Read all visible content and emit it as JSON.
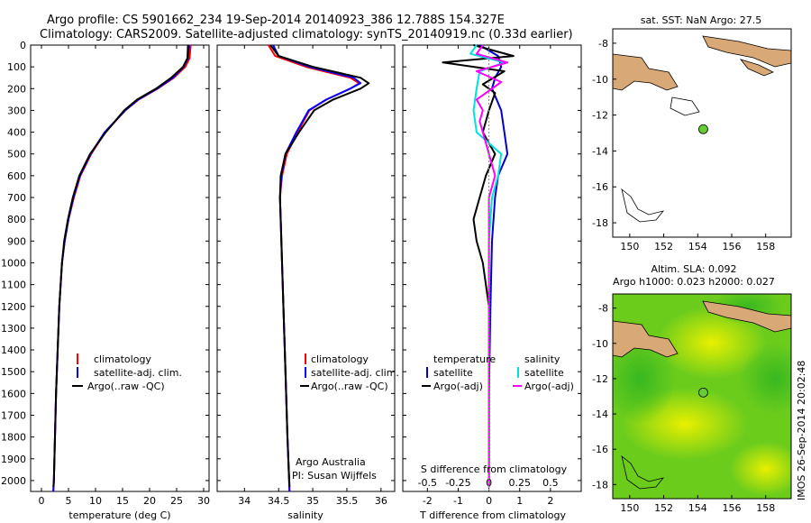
{
  "header": {
    "line1": "Argo profile: CS 5901662_234 19-Sep-2014 20140923_386 12.788S 154.327E",
    "line2": "Climatology: CARS2009. Satellite-adjusted climatology: synTS_20140919.nc (0.33d earlier)"
  },
  "colors": {
    "climatology": "#ff0000",
    "satellite": "#0000ff",
    "argo": "#000000",
    "temp_sat": "#0000c8",
    "sal_sat": "#00e0e0",
    "sal_argo": "#ff00ff",
    "land": "#d9a877",
    "float_marker": "#66cc33"
  },
  "depth_axis": {
    "ticks": [
      0,
      100,
      200,
      300,
      400,
      500,
      600,
      700,
      800,
      900,
      1000,
      1100,
      1200,
      1300,
      1400,
      1500,
      1600,
      1700,
      1800,
      1900,
      2000
    ],
    "range": [
      0,
      2050
    ]
  },
  "chart_data": [
    {
      "type": "line",
      "panel": "temperature",
      "xlabel": "temperature (deg C)",
      "xlim": [
        -2,
        31
      ],
      "xticks": [
        0,
        5,
        10,
        15,
        20,
        25,
        30
      ],
      "ylim": [
        2050,
        0
      ],
      "legend": {
        "placement": "lower-middle",
        "items": [
          "climatology",
          "satellite-adj. clim.",
          "Argo(..raw -QC)"
        ]
      },
      "series": [
        {
          "name": "climatology",
          "color": "#ff0000",
          "depth": [
            0,
            60,
            100,
            150,
            200,
            250,
            300,
            400,
            500,
            600,
            700,
            800,
            900,
            1000,
            1200,
            1400,
            1600,
            1800,
            2000,
            2050
          ],
          "values": [
            27.6,
            27.4,
            26.6,
            24.5,
            21.5,
            18.0,
            15.5,
            11.8,
            9.2,
            7.2,
            6.0,
            5.0,
            4.3,
            3.8,
            3.3,
            3.0,
            2.7,
            2.5,
            2.3,
            2.2
          ]
        },
        {
          "name": "satellite-adj. clim.",
          "color": "#0000ff",
          "depth": [
            0,
            60,
            100,
            150,
            200,
            250,
            300,
            400,
            500,
            600,
            700,
            800,
            900,
            1000,
            1200,
            1400,
            1600,
            1800,
            2000,
            2050
          ],
          "values": [
            27.3,
            27.1,
            26.3,
            24.3,
            21.4,
            17.9,
            15.5,
            11.7,
            9.1,
            7.1,
            5.9,
            5.0,
            4.3,
            3.8,
            3.3,
            3.0,
            2.7,
            2.5,
            2.3,
            2.2
          ]
        },
        {
          "name": "Argo(..raw -QC)",
          "color": "#000000",
          "depth": [
            0,
            60,
            100,
            150,
            200,
            250,
            300,
            400,
            500,
            600,
            700,
            800,
            900,
            1000,
            1200,
            1400,
            1600,
            1800,
            2000,
            2030
          ],
          "values": [
            27.1,
            27.0,
            26.2,
            24.0,
            21.2,
            17.7,
            15.3,
            11.9,
            9.0,
            7.0,
            5.8,
            4.9,
            4.2,
            3.8,
            3.3,
            3.0,
            2.7,
            2.5,
            2.3,
            2.2
          ]
        }
      ]
    },
    {
      "type": "line",
      "panel": "salinity",
      "xlabel": "salinity",
      "xlim": [
        33.6,
        36.2
      ],
      "xticks": [
        34,
        34.5,
        35,
        35.5,
        36
      ],
      "xtick_labels": [
        "34",
        "34.5",
        "35",
        "35.5",
        "36"
      ],
      "ylim": [
        2050,
        0
      ],
      "legend": {
        "placement": "lower-right",
        "items": [
          "climatology",
          "satellite-adj. clim.",
          "Argo(..raw -QC)"
        ]
      },
      "annotation": [
        "Argo Australia",
        "PI: Susan Wijffels"
      ],
      "series": [
        {
          "name": "climatology",
          "color": "#ff0000",
          "depth": [
            0,
            50,
            100,
            150,
            175,
            200,
            250,
            300,
            400,
            500,
            600,
            700,
            800,
            1000,
            1200,
            1500,
            1800,
            2050
          ],
          "values": [
            34.35,
            34.45,
            34.9,
            35.55,
            35.68,
            35.55,
            35.2,
            34.95,
            34.78,
            34.62,
            34.55,
            34.52,
            34.53,
            34.55,
            34.57,
            34.6,
            34.63,
            34.66
          ]
        },
        {
          "name": "satellite-adj. clim.",
          "color": "#0000ff",
          "depth": [
            0,
            50,
            100,
            150,
            175,
            200,
            250,
            300,
            400,
            500,
            600,
            700,
            800,
            1000,
            1200,
            1500,
            1800,
            2050
          ],
          "values": [
            34.42,
            34.5,
            34.95,
            35.6,
            35.7,
            35.55,
            35.2,
            34.94,
            34.76,
            34.6,
            34.54,
            34.52,
            34.53,
            34.55,
            34.57,
            34.6,
            34.63,
            34.66
          ]
        },
        {
          "name": "Argo(..raw -QC)",
          "color": "#000000",
          "depth": [
            0,
            50,
            100,
            150,
            175,
            200,
            250,
            300,
            400,
            500,
            600,
            700,
            800,
            1000,
            1200,
            1500,
            1800,
            2030
          ],
          "values": [
            34.38,
            34.5,
            35.0,
            35.7,
            35.82,
            35.7,
            35.3,
            35.02,
            34.8,
            34.6,
            34.53,
            34.52,
            34.53,
            34.55,
            34.57,
            34.6,
            34.63,
            34.66
          ]
        }
      ]
    },
    {
      "type": "line",
      "panel": "difference",
      "xlabel": "T difference from climatology",
      "xlabel_top": "S difference from climatology",
      "xlim": [
        -2.8,
        3.0
      ],
      "xticks": [
        -2,
        -1,
        0,
        1,
        2
      ],
      "s_ticks": [
        -0.5,
        -0.25,
        0,
        0.25,
        0.5
      ],
      "s_tick_labels": [
        "-0.5",
        "-0.25",
        "0",
        "0.25",
        "0.5"
      ],
      "ylim": [
        2050,
        0
      ],
      "legend": {
        "placement": "lower",
        "columns": [
          [
            "temperature",
            "satellite",
            "Argo(-adj)"
          ],
          [
            "salinity",
            "satellite",
            "Argo(-adj)"
          ]
        ]
      },
      "series": [
        {
          "name": "satellite",
          "group": "temperature",
          "color": "#0000c8",
          "depth": [
            0,
            50,
            100,
            150,
            200,
            300,
            400,
            500,
            600,
            700,
            900,
            1200,
            1600,
            2030
          ],
          "values": [
            -0.3,
            0.3,
            0.4,
            0.2,
            0.1,
            0.4,
            0.5,
            0.6,
            0.3,
            0.2,
            0.1,
            0.05,
            0.0,
            0.0
          ]
        },
        {
          "name": "Argo(-adj)",
          "group": "temperature",
          "color": "#000000",
          "depth": [
            0,
            50,
            80,
            120,
            180,
            220,
            300,
            400,
            500,
            600,
            700,
            800,
            900,
            1000,
            1200,
            1600,
            2030
          ],
          "values": [
            -0.5,
            0.8,
            -1.5,
            0.5,
            -0.2,
            0.2,
            0.0,
            -0.2,
            0.2,
            -0.1,
            -0.3,
            -0.5,
            -0.4,
            -0.2,
            0.0,
            0.0,
            0.0
          ]
        },
        {
          "name": "satellite",
          "group": "salinity",
          "color": "#00e0e0",
          "depth": [
            0,
            40,
            80,
            120,
            200,
            300,
            400,
            500,
            600,
            700,
            900,
            1200,
            1600,
            2030
          ],
          "values": [
            -0.4,
            -0.6,
            0.5,
            -0.3,
            -0.4,
            -0.5,
            -0.4,
            0.4,
            0.3,
            0.1,
            0.0,
            0.0,
            0.0,
            0.0
          ]
        },
        {
          "name": "Argo(-adj)",
          "group": "salinity",
          "color": "#ff00ff",
          "depth": [
            0,
            40,
            80,
            120,
            170,
            250,
            300,
            350,
            400,
            500,
            600,
            700,
            1000,
            1600,
            2030
          ],
          "values": [
            -0.2,
            -0.4,
            0.6,
            -0.4,
            0.4,
            -0.4,
            -0.2,
            -0.3,
            -0.2,
            0.0,
            0.2,
            0.0,
            0.0,
            0.0,
            0.0
          ]
        }
      ]
    },
    {
      "type": "map",
      "panel": "map_sst",
      "title": "sat. SST: NaN Argo: 27.5",
      "xlim": [
        149,
        159.5
      ],
      "ylim": [
        -18.8,
        -7.2
      ],
      "xticks": [
        150,
        152,
        154,
        156,
        158
      ],
      "yticks": [
        -8,
        -10,
        -12,
        -14,
        -16,
        -18
      ],
      "float_position": [
        154.327,
        -12.788
      ]
    },
    {
      "type": "heatmap",
      "panel": "map_sla",
      "title1": "Altim. SLA: 0.092",
      "title2": "Argo h1000: 0.023 h2000: 0.027",
      "xlim": [
        149,
        159.5
      ],
      "ylim": [
        -18.8,
        -7.2
      ],
      "xticks": [
        150,
        152,
        154,
        156,
        158
      ],
      "yticks": [
        -8,
        -10,
        -12,
        -14,
        -16,
        -18
      ],
      "float_position": [
        154.327,
        -12.788
      ]
    }
  ],
  "footer": {
    "stamp": "IMOS 26-Sep-2014 20:02:48"
  }
}
